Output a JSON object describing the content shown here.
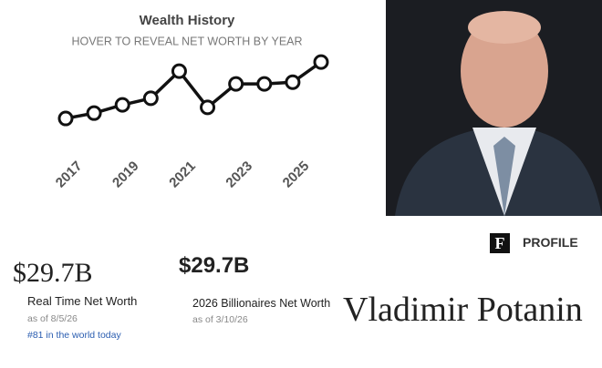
{
  "chart_data": {
    "type": "line",
    "title": "Wealth History",
    "subtitle": "HOVER TO REVEAL NET WORTH BY YEAR",
    "x": [
      2017,
      2018,
      2019,
      2020,
      2021,
      2022,
      2023,
      2024,
      2025,
      2026
    ],
    "series": [
      {
        "color": "#111111",
        "values": [
          16.0,
          17.3,
          19.3,
          20.9,
          27.5,
          18.7,
          24.4,
          24.4,
          24.8,
          29.7
        ]
      }
    ],
    "xlim": [
      2017,
      2026
    ],
    "xticks": [
      2017,
      2019,
      2021,
      2023,
      2025
    ],
    "ylim": [
      13.8,
      31.5
    ]
  },
  "real_time": {
    "value": "$29.7B",
    "label": "Real Time Net Worth",
    "date": "as of 8/5/26",
    "rank": "#81 in the world today"
  },
  "billionaires": {
    "value": "$29.7B",
    "label": "2026 Billionaires Net Worth",
    "date": "as of 3/10/26"
  },
  "profile": {
    "logo": "F",
    "section": "PROFILE",
    "name": "Vladimir Potanin"
  }
}
